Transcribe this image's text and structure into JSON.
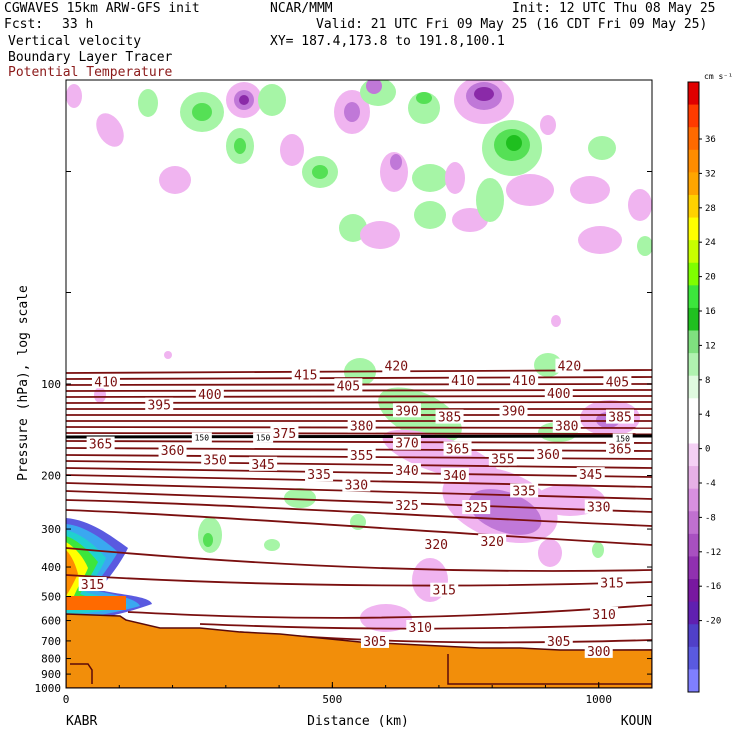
{
  "header": {
    "model": "CGWAVES 15km ARW-GFS init",
    "fcst_label": "Fcst:",
    "fcst_value": "33 h",
    "center": "NCAR/MMM",
    "init": "Init: 12 UTC Thu 08 May 25",
    "valid": "Valid: 21 UTC Fri 09 May 25 (16 CDT Fri 09 May 25)",
    "xy": "XY= 187.4,173.8 to 191.8,100.1",
    "fields": [
      "Vertical velocity",
      "Boundary Layer Tracer",
      "Potential Temperature"
    ]
  },
  "colors": {
    "theta_contour": "#7a0f0f",
    "tropopause_line": "#000000",
    "terrain": "#f28e0a",
    "up_light": "#a6f5a6",
    "up_mid": "#55e055",
    "up_strong": "#1fbf1f",
    "down_light": "#f0b4f0",
    "down_mid": "#c078d8",
    "down_strong": "#8a2aa8"
  },
  "chart_data": {
    "type": "heatmap",
    "ylabel": "Pressure (hPa), log scale",
    "xlabel": "Distance (km)",
    "x_range": [
      0,
      1100
    ],
    "y_range": [
      1000,
      10
    ],
    "y_scale": "log",
    "x_ticks": [
      "0",
      "500",
      "1000"
    ],
    "y_ticks": [
      "100",
      "200",
      "300",
      "400",
      "500",
      "600",
      "700",
      "800",
      "900",
      "1000"
    ],
    "left_station": "KABR",
    "right_station": "KOUN",
    "colorbar": {
      "unit": "cm s⁻¹",
      "labels": [
        "36",
        "32",
        "28",
        "24",
        "20",
        "16",
        "12",
        "8",
        "4",
        "0",
        "-4",
        "-8",
        "-12",
        "-16",
        "-20"
      ],
      "colors": [
        "#e00000",
        "#ff3b00",
        "#ff6a00",
        "#ff8c00",
        "#ffa500",
        "#ffd200",
        "#ffff00",
        "#c8ff00",
        "#7fff00",
        "#3ce63c",
        "#20c020",
        "#7fe07f",
        "#b0f2b0",
        "#e0fae0",
        "#ffffff",
        "#ffffff",
        "#f4d0f4",
        "#e6b0e6",
        "#d890e0",
        "#c070d0",
        "#a850c0",
        "#9030b0",
        "#7818a0",
        "#6020b0",
        "#5040c8",
        "#5a5ae0",
        "#7f7fff"
      ]
    },
    "theta_labels": [
      {
        "value": "410",
        "x_km": 75,
        "p": 98
      },
      {
        "value": "415",
        "x_km": 450,
        "p": 93
      },
      {
        "value": "420",
        "x_km": 620,
        "p": 87
      },
      {
        "value": "420",
        "x_km": 945,
        "p": 87
      },
      {
        "value": "410",
        "x_km": 745,
        "p": 97
      },
      {
        "value": "410",
        "x_km": 860,
        "p": 97
      },
      {
        "value": "405",
        "x_km": 530,
        "p": 101
      },
      {
        "value": "405",
        "x_km": 1035,
        "p": 98
      },
      {
        "value": "400",
        "x_km": 270,
        "p": 108
      },
      {
        "value": "400",
        "x_km": 925,
        "p": 107
      },
      {
        "value": "395",
        "x_km": 175,
        "p": 117
      },
      {
        "value": "390",
        "x_km": 640,
        "p": 122
      },
      {
        "value": "390",
        "x_km": 840,
        "p": 122
      },
      {
        "value": "385",
        "x_km": 720,
        "p": 128
      },
      {
        "value": "385",
        "x_km": 1040,
        "p": 128
      },
      {
        "value": "380",
        "x_km": 555,
        "p": 137
      },
      {
        "value": "380",
        "x_km": 940,
        "p": 137
      },
      {
        "value": "375",
        "x_km": 410,
        "p": 145
      },
      {
        "value": "370",
        "x_km": 640,
        "p": 156
      },
      {
        "value": "365",
        "x_km": 65,
        "p": 157
      },
      {
        "value": "365",
        "x_km": 735,
        "p": 163
      },
      {
        "value": "365",
        "x_km": 1040,
        "p": 163
      },
      {
        "value": "360",
        "x_km": 200,
        "p": 165
      },
      {
        "value": "360",
        "x_km": 905,
        "p": 170
      },
      {
        "value": "355",
        "x_km": 555,
        "p": 171
      },
      {
        "value": "355",
        "x_km": 820,
        "p": 176
      },
      {
        "value": "350",
        "x_km": 280,
        "p": 177
      },
      {
        "value": "345",
        "x_km": 370,
        "p": 183
      },
      {
        "value": "345",
        "x_km": 985,
        "p": 198
      },
      {
        "value": "340",
        "x_km": 640,
        "p": 192
      },
      {
        "value": "340",
        "x_km": 730,
        "p": 199
      },
      {
        "value": "335",
        "x_km": 475,
        "p": 198
      },
      {
        "value": "335",
        "x_km": 860,
        "p": 224
      },
      {
        "value": "330",
        "x_km": 545,
        "p": 214
      },
      {
        "value": "330",
        "x_km": 1000,
        "p": 253
      },
      {
        "value": "325",
        "x_km": 640,
        "p": 250
      },
      {
        "value": "325",
        "x_km": 770,
        "p": 254
      },
      {
        "value": "320",
        "x_km": 695,
        "p": 336
      },
      {
        "value": "320",
        "x_km": 800,
        "p": 328
      },
      {
        "value": "315",
        "x_km": 50,
        "p": 455
      },
      {
        "value": "315",
        "x_km": 710,
        "p": 475
      },
      {
        "value": "315",
        "x_km": 1025,
        "p": 450
      },
      {
        "value": "310",
        "x_km": 665,
        "p": 630
      },
      {
        "value": "310",
        "x_km": 1010,
        "p": 570
      },
      {
        "value": "305",
        "x_km": 580,
        "p": 700
      },
      {
        "value": "305",
        "x_km": 925,
        "p": 700
      },
      {
        "value": "300",
        "x_km": 1000,
        "p": 755
      }
    ],
    "tracer_labels": [
      {
        "value": "150",
        "x_km": 255,
        "p": 150
      },
      {
        "value": "150",
        "x_km": 370,
        "p": 150
      },
      {
        "value": "150",
        "x_km": 1045,
        "p": 151
      }
    ]
  }
}
